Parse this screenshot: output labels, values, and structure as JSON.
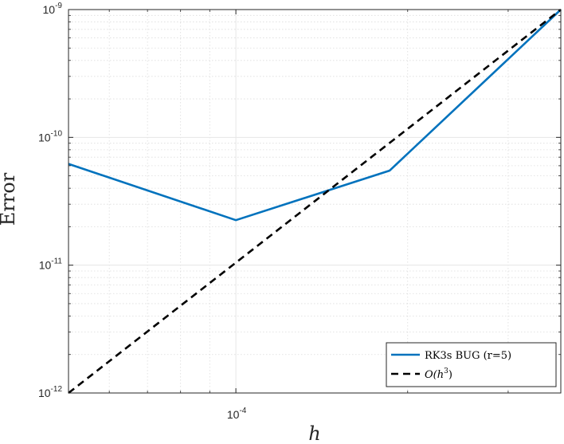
{
  "chart_data": {
    "type": "line",
    "xlabel": "h",
    "ylabel": "Error",
    "xscale": "log",
    "yscale": "log",
    "xlim": [
      5.09e-05,
      0.000371
    ],
    "ylim": [
      1e-12,
      1e-09
    ],
    "grid": true,
    "minor_grid": true,
    "legend_position": "bottom-right",
    "x_ticks": [
      {
        "base": "10",
        "exp": "-4",
        "value": 0.0001
      }
    ],
    "y_ticks": [
      {
        "base": "10",
        "exp": "-12",
        "value": 1e-12
      },
      {
        "base": "10",
        "exp": "-11",
        "value": 1e-11
      },
      {
        "base": "10",
        "exp": "-10",
        "value": 1e-10
      },
      {
        "base": "10",
        "exp": "-9",
        "value": 1e-09
      }
    ],
    "series": [
      {
        "name": "RK3s BUG (r=5)",
        "color": "#0072BD",
        "dash": "solid",
        "x": [
          5.09e-05,
          0.0001,
          0.000186,
          0.000371
        ],
        "y": [
          6.2e-11,
          2.25e-11,
          5.5e-11,
          1e-09
        ]
      },
      {
        "name": "O(h^3)",
        "color": "#000000",
        "dash": "dashed",
        "x": [
          5.09e-05,
          0.000371
        ],
        "y": [
          1e-12,
          1e-09
        ]
      }
    ]
  }
}
